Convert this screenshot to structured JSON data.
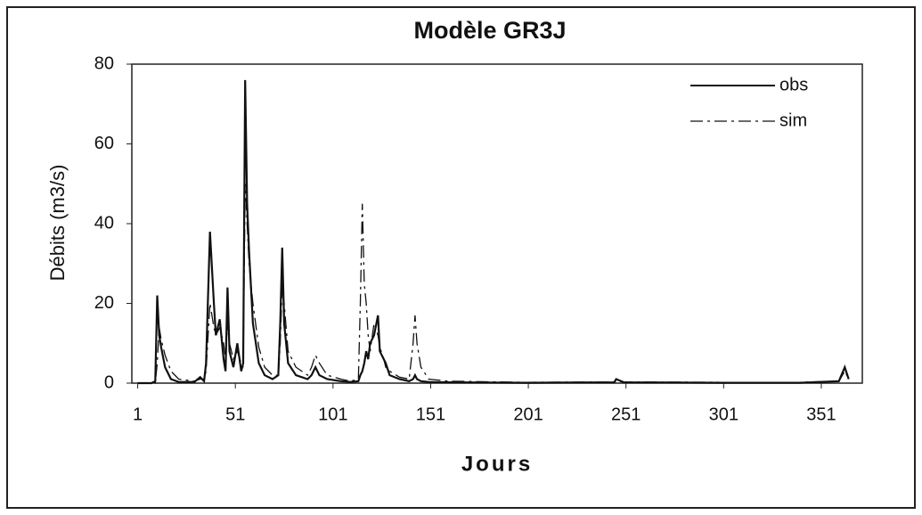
{
  "chart_data": {
    "type": "line",
    "title": "Modèle GR3J",
    "x_label": "Jours",
    "y_label": "Débits (m3/s)",
    "x": [
      1,
      8,
      10,
      11,
      12,
      13,
      15,
      18,
      22,
      30,
      33,
      35,
      36,
      38,
      40,
      41,
      43,
      45,
      46,
      47,
      48,
      50,
      52,
      54,
      55,
      56,
      57,
      58,
      60,
      63,
      66,
      70,
      73,
      74,
      75,
      76,
      78,
      82,
      88,
      90,
      92,
      94,
      98,
      105,
      110,
      114,
      115,
      116,
      117,
      118,
      119,
      120,
      122,
      124,
      125,
      127,
      128,
      130,
      135,
      140,
      142,
      143,
      144,
      146,
      150,
      160,
      200,
      245,
      246,
      250,
      300,
      340,
      360,
      363,
      365
    ],
    "series": [
      {
        "name": "obs",
        "color": "#111111",
        "dash": "solid",
        "values": [
          0,
          0,
          0.5,
          22,
          12,
          9,
          4,
          1,
          0.3,
          0.3,
          1.5,
          0.5,
          5,
          38,
          20,
          12,
          16,
          6,
          3,
          24,
          8,
          4,
          10,
          3,
          5,
          76,
          45,
          33,
          15,
          5,
          2,
          1,
          2,
          15,
          34,
          15,
          5,
          2,
          1,
          2,
          4,
          2,
          1,
          0.5,
          0.3,
          0.5,
          2,
          3,
          5,
          8,
          6,
          10,
          12,
          17,
          8,
          6,
          5,
          2,
          1,
          0.5,
          1,
          2,
          1,
          0.5,
          0.3,
          0.2,
          0.1,
          0.2,
          1,
          0.2,
          0.1,
          0.1,
          0.5,
          4,
          1
        ]
      },
      {
        "name": "sim",
        "color": "#111111",
        "dash": "dashdot",
        "values": [
          0,
          0,
          0,
          5,
          14,
          11,
          7,
          3,
          1,
          0.5,
          1,
          1,
          3,
          20,
          14,
          12,
          14,
          10,
          6,
          15,
          10,
          6,
          8,
          5,
          4,
          50,
          40,
          30,
          20,
          9,
          4,
          2,
          2,
          10,
          25,
          20,
          8,
          4,
          2,
          4,
          7,
          5,
          2,
          1,
          0.5,
          1,
          20,
          45,
          25,
          20,
          12,
          8,
          15,
          12,
          9,
          6,
          4,
          3,
          1.5,
          1,
          10,
          17,
          10,
          4,
          1,
          0.5,
          0.2,
          0.3,
          0.5,
          0.3,
          0.2,
          0.2,
          0.5,
          3,
          1
        ]
      }
    ],
    "xlim": [
      -2,
      372
    ],
    "xticks": [
      1,
      51,
      101,
      151,
      201,
      251,
      301,
      351
    ],
    "ylim": [
      0,
      80
    ],
    "yticks": [
      0,
      20,
      40,
      60,
      80
    ],
    "legend": "upper right"
  }
}
